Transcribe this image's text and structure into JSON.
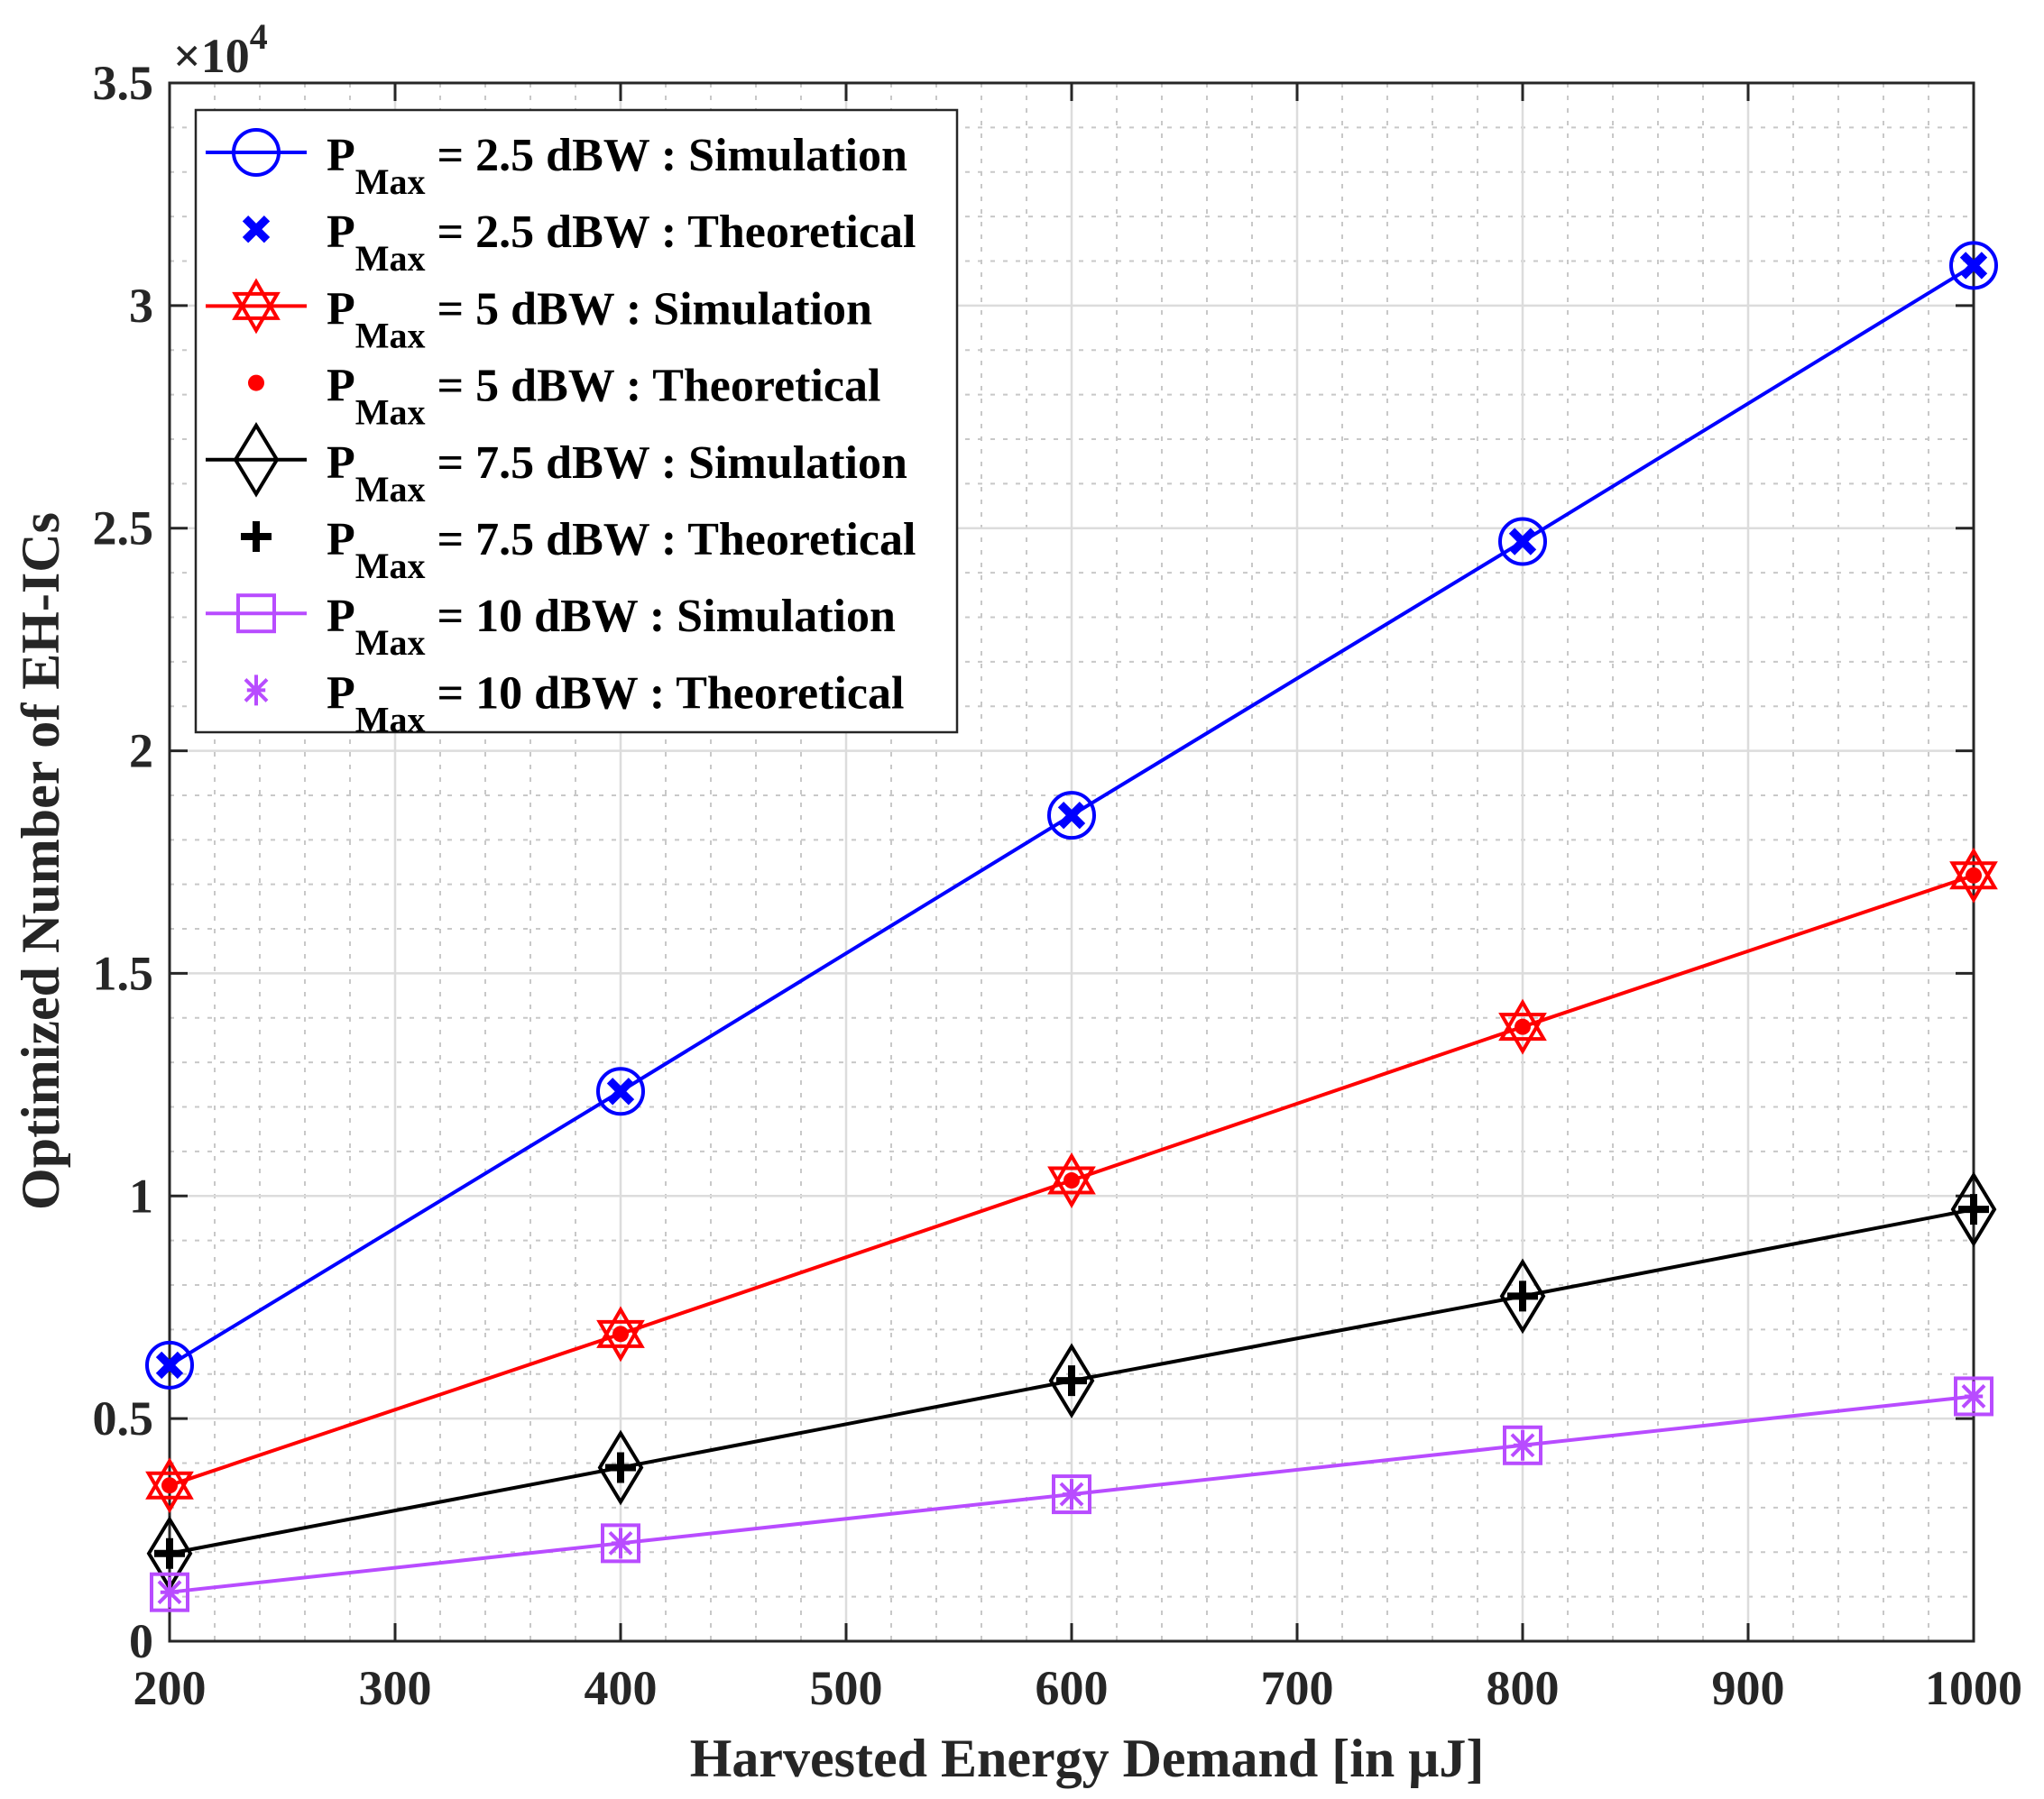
{
  "chart_data": {
    "type": "line",
    "title": "",
    "xlabel": "Harvested Energy Demand [in μJ]",
    "ylabel": "Optimized Number of EH-ICs",
    "y_exponent_label": "×10",
    "y_exponent": "4",
    "xlim": [
      200,
      1000
    ],
    "ylim": [
      0,
      3.5
    ],
    "x_ticks": [
      200,
      300,
      400,
      500,
      600,
      700,
      800,
      900,
      1000
    ],
    "x_tick_labels": [
      "200",
      "300",
      "400",
      "500",
      "600",
      "700",
      "800",
      "900",
      "1000"
    ],
    "y_ticks": [
      0,
      0.5,
      1,
      1.5,
      2,
      2.5,
      3,
      3.5
    ],
    "y_tick_labels": [
      "0",
      "0.5",
      "1",
      "1.5",
      "2",
      "2.5",
      "3",
      "3.5"
    ],
    "grid": true,
    "minor_grid": true,
    "legend_position": "top-left",
    "x": [
      200,
      400,
      600,
      800,
      1000
    ],
    "series": [
      {
        "name": "P_Max = 2.5 dBW : Simulation",
        "sub": "Max",
        "rest": " = 2.5 dBW : Simulation",
        "color": "#0000FF",
        "marker": "circle",
        "line": true,
        "values": [
          0.62,
          1.235,
          1.855,
          2.47,
          3.09
        ]
      },
      {
        "name": "P_Max = 2.5 dBW : Theoretical",
        "sub": "Max",
        "rest": " = 2.5 dBW : Theoretical",
        "color": "#0000FF",
        "marker": "x",
        "line": false,
        "values": [
          0.62,
          1.235,
          1.855,
          2.47,
          3.09
        ]
      },
      {
        "name": "P_Max = 5 dBW : Simulation",
        "sub": "Max",
        "rest": " = 5 dBW : Simulation",
        "color": "#FF0000",
        "marker": "hexagram",
        "line": true,
        "values": [
          0.35,
          0.69,
          1.035,
          1.38,
          1.72
        ]
      },
      {
        "name": "P_Max = 5 dBW : Theoretical",
        "sub": "Max",
        "rest": " = 5 dBW : Theoretical",
        "color": "#FF0000",
        "marker": "dot",
        "line": false,
        "values": [
          0.35,
          0.69,
          1.035,
          1.38,
          1.72
        ]
      },
      {
        "name": "P_Max = 7.5 dBW : Simulation",
        "sub": "Max",
        "rest": " = 7.5 dBW : Simulation",
        "color": "#000000",
        "marker": "diamond",
        "line": true,
        "values": [
          0.197,
          0.39,
          0.585,
          0.775,
          0.97
        ]
      },
      {
        "name": "P_Max = 7.5 dBW : Theoretical",
        "sub": "Max",
        "rest": " = 7.5 dBW : Theoretical",
        "color": "#000000",
        "marker": "plus",
        "line": false,
        "values": [
          0.197,
          0.39,
          0.585,
          0.775,
          0.97
        ]
      },
      {
        "name": "P_Max = 10 dBW : Simulation",
        "sub": "Max",
        "rest": " = 10 dBW : Simulation",
        "color": "#B84CFF",
        "marker": "square",
        "line": true,
        "values": [
          0.11,
          0.22,
          0.33,
          0.44,
          0.55
        ]
      },
      {
        "name": "P_Max = 10 dBW : Theoretical",
        "sub": "Max",
        "rest": " = 10 dBW : Theoretical",
        "color": "#B84CFF",
        "marker": "asterisk",
        "line": false,
        "values": [
          0.11,
          0.22,
          0.33,
          0.44,
          0.55
        ]
      }
    ]
  }
}
